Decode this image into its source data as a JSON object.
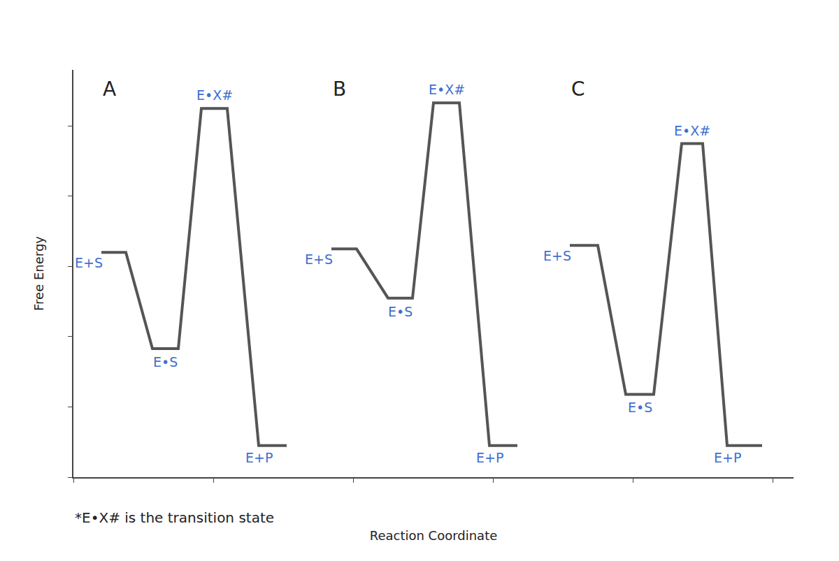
{
  "chart_data": {
    "type": "line",
    "x_label": "Reaction Coordinate",
    "y_label": "Free Energy",
    "note": "*E•X# is the transition state",
    "xlim": [
      0,
      103
    ],
    "ylim": [
      0,
      58
    ],
    "xticks": [
      0,
      20,
      40,
      60,
      80,
      100
    ],
    "yticks": [
      0,
      10,
      20,
      30,
      40,
      50
    ],
    "tick_labels": false,
    "grid": false,
    "series": [
      {
        "name": "A",
        "color": "#555555",
        "labels": [
          "E+S",
          "E•S",
          "E•X#",
          "E+P"
        ],
        "x": [
          4,
          7.5,
          11.3,
          15,
          18.3,
          22,
          26.5,
          30.5
        ],
        "values": [
          32,
          32,
          18.3,
          18.3,
          52.5,
          52.5,
          4.5,
          4.5
        ]
      },
      {
        "name": "B",
        "color": "#555555",
        "labels": [
          "E+S",
          "E•S",
          "E•X#",
          "E+P"
        ],
        "x": [
          36.9,
          40.5,
          45,
          48.5,
          51.5,
          55.2,
          59.5,
          63.5
        ],
        "values": [
          32.5,
          32.5,
          25.5,
          25.5,
          53.3,
          53.3,
          4.5,
          4.5
        ]
      },
      {
        "name": "C",
        "color": "#555555",
        "labels": [
          "E+S",
          "E•S",
          "E•X#",
          "E+P"
        ],
        "x": [
          71,
          75,
          79,
          83,
          87,
          90,
          93.5,
          98.5
        ],
        "values": [
          33,
          33,
          11.8,
          11.8,
          47.5,
          47.5,
          4.5,
          4.5
        ]
      }
    ]
  }
}
